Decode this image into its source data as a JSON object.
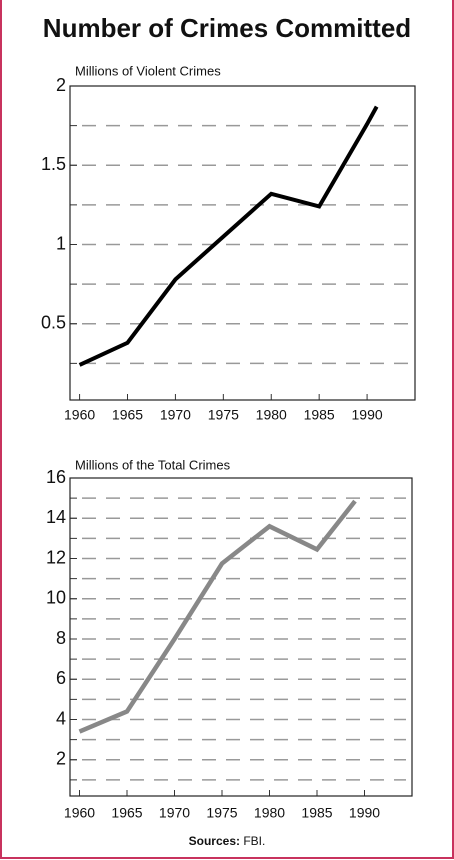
{
  "title": "Number of Crimes Committed",
  "source_label": "Sources:",
  "source": "FBI.",
  "chart_data": [
    {
      "type": "line",
      "subtitle": "Millions of Violent Crimes",
      "x": [
        1960,
        1965,
        1970,
        1980,
        1985,
        1990,
        1991
      ],
      "values": [
        0.24,
        0.38,
        0.78,
        1.32,
        1.24,
        1.76,
        1.87
      ],
      "color": "#000000",
      "xlim": [
        1959,
        1995
      ],
      "xticks": [
        1960,
        1965,
        1970,
        1975,
        1980,
        1985,
        1990
      ],
      "ylim": [
        0,
        2
      ],
      "yticks": [
        0.5,
        1,
        1.5,
        2
      ],
      "grid_yticks": [
        0.25,
        0.5,
        0.75,
        1,
        1.25,
        1.5,
        1.75
      ],
      "grid": true
    },
    {
      "type": "line",
      "subtitle": "Millions of the Total Crimes",
      "x": [
        1960,
        1965,
        1970,
        1975,
        1980,
        1985,
        1989
      ],
      "values": [
        3.4,
        4.4,
        8.0,
        11.75,
        13.6,
        12.45,
        14.85
      ],
      "color": "#888888",
      "xlim": [
        1959,
        1995
      ],
      "xticks": [
        1960,
        1965,
        1970,
        1975,
        1980,
        1985,
        1990
      ],
      "ylim": [
        0,
        16
      ],
      "yticks": [
        2,
        4,
        6,
        8,
        10,
        12,
        14,
        16
      ],
      "grid_yticks": [
        1,
        2,
        3,
        4,
        5,
        6,
        7,
        8,
        9,
        10,
        11,
        12,
        13,
        14,
        15
      ],
      "grid": true
    }
  ]
}
